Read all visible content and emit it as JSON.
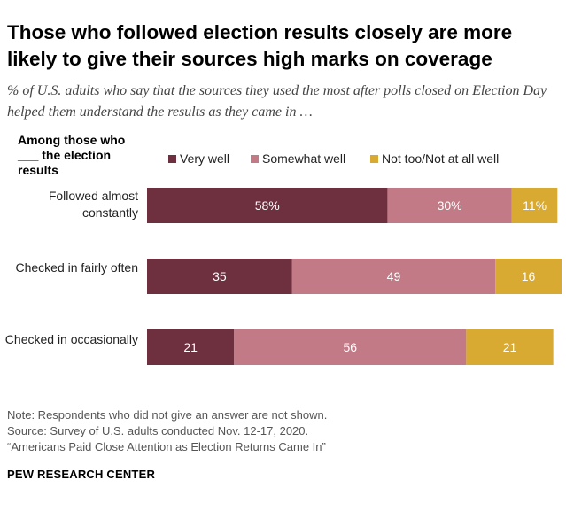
{
  "title": "Those who followed election results closely are more likely to give their sources high marks on coverage",
  "subtitle": "% of U.S. adults who say that the sources they used the most after polls closed on Election Day helped them understand the results as they came in …",
  "group_header": "Among those who ___ the election results",
  "colors": {
    "very_well": "#6e2f3f",
    "somewhat_well": "#c17a86",
    "not_too": "#d9aa31"
  },
  "chart_data": {
    "type": "bar",
    "orientation": "horizontal",
    "stacked": true,
    "title": "Those who followed election results closely are more likely to give their sources high marks on coverage",
    "categories": [
      "Followed almost constantly",
      "Checked in fairly often",
      "Checked in occasionally"
    ],
    "series": [
      {
        "name": "Very well",
        "values": [
          58,
          35,
          21
        ],
        "labels": [
          "58%",
          "35",
          "21"
        ]
      },
      {
        "name": "Somewhat well",
        "values": [
          30,
          49,
          56
        ],
        "labels": [
          "30%",
          "49",
          "56"
        ]
      },
      {
        "name": "Not too/Not at all well",
        "values": [
          11,
          16,
          21
        ],
        "labels": [
          "11%",
          "16",
          "21"
        ]
      }
    ],
    "xlim": [
      0,
      100
    ],
    "grid": false,
    "legend": "top"
  },
  "notes": {
    "note": "Note: Respondents who did not give an answer are not shown.",
    "source": "Source: Survey of U.S. adults conducted Nov. 12-17, 2020.",
    "report": "“Americans Paid Close Attention as Election Returns Came In”"
  },
  "brand": "PEW RESEARCH CENTER"
}
